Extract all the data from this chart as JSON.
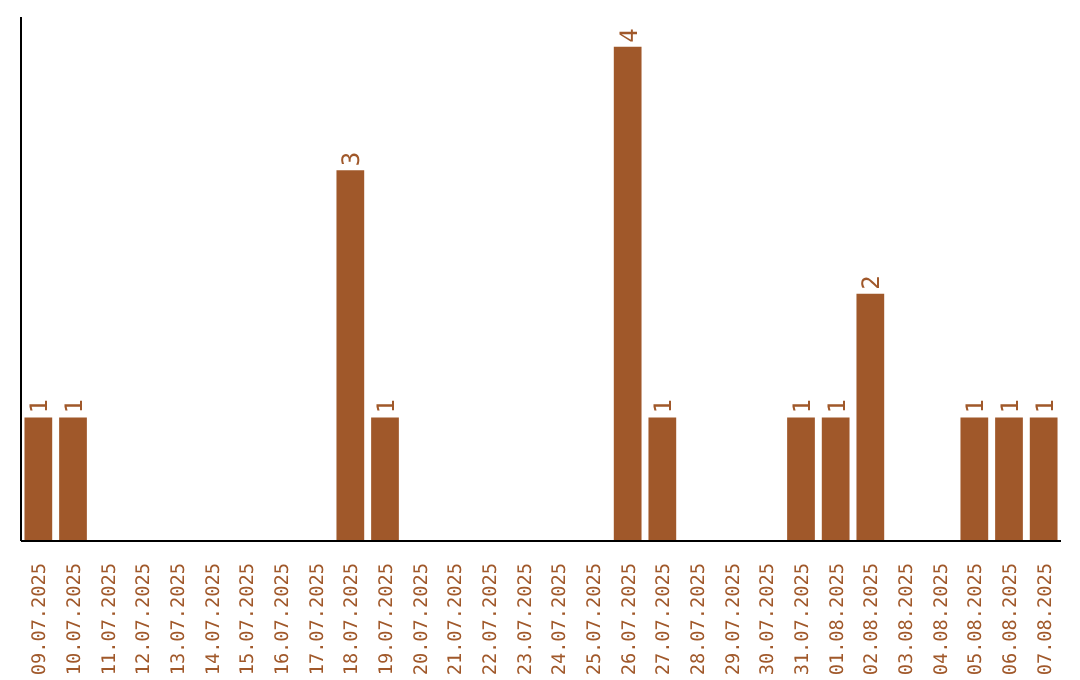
{
  "chart_data": {
    "type": "bar",
    "relative": false,
    "categories": [
      "09.07.2025",
      "10.07.2025",
      "11.07.2025",
      "12.07.2025",
      "13.07.2025",
      "14.07.2025",
      "15.07.2025",
      "16.07.2025",
      "17.07.2025",
      "18.07.2025",
      "19.07.2025",
      "20.07.2025",
      "21.07.2025",
      "22.07.2025",
      "23.07.2025",
      "24.07.2025",
      "25.07.2025",
      "26.07.2025",
      "27.07.2025",
      "28.07.2025",
      "29.07.2025",
      "30.07.2025",
      "31.07.2025",
      "01.08.2025",
      "02.08.2025",
      "03.08.2025",
      "04.08.2025",
      "05.08.2025",
      "06.08.2025",
      "07.08.2025"
    ],
    "values": [
      1,
      1,
      0,
      0,
      0,
      0,
      0,
      0,
      0,
      3,
      1,
      0,
      0,
      0,
      0,
      0,
      0,
      4,
      1,
      0,
      0,
      0,
      1,
      1,
      2,
      0,
      0,
      1,
      1,
      1
    ],
    "value_labels": [
      "1",
      "1",
      null,
      null,
      null,
      null,
      null,
      null,
      null,
      "3",
      "1",
      null,
      null,
      null,
      null,
      null,
      null,
      "4",
      "1",
      null,
      null,
      null,
      "1",
      "1",
      "2",
      null,
      null,
      "1",
      "1",
      "1"
    ],
    "color": "#a0582a",
    "grid": false
  }
}
